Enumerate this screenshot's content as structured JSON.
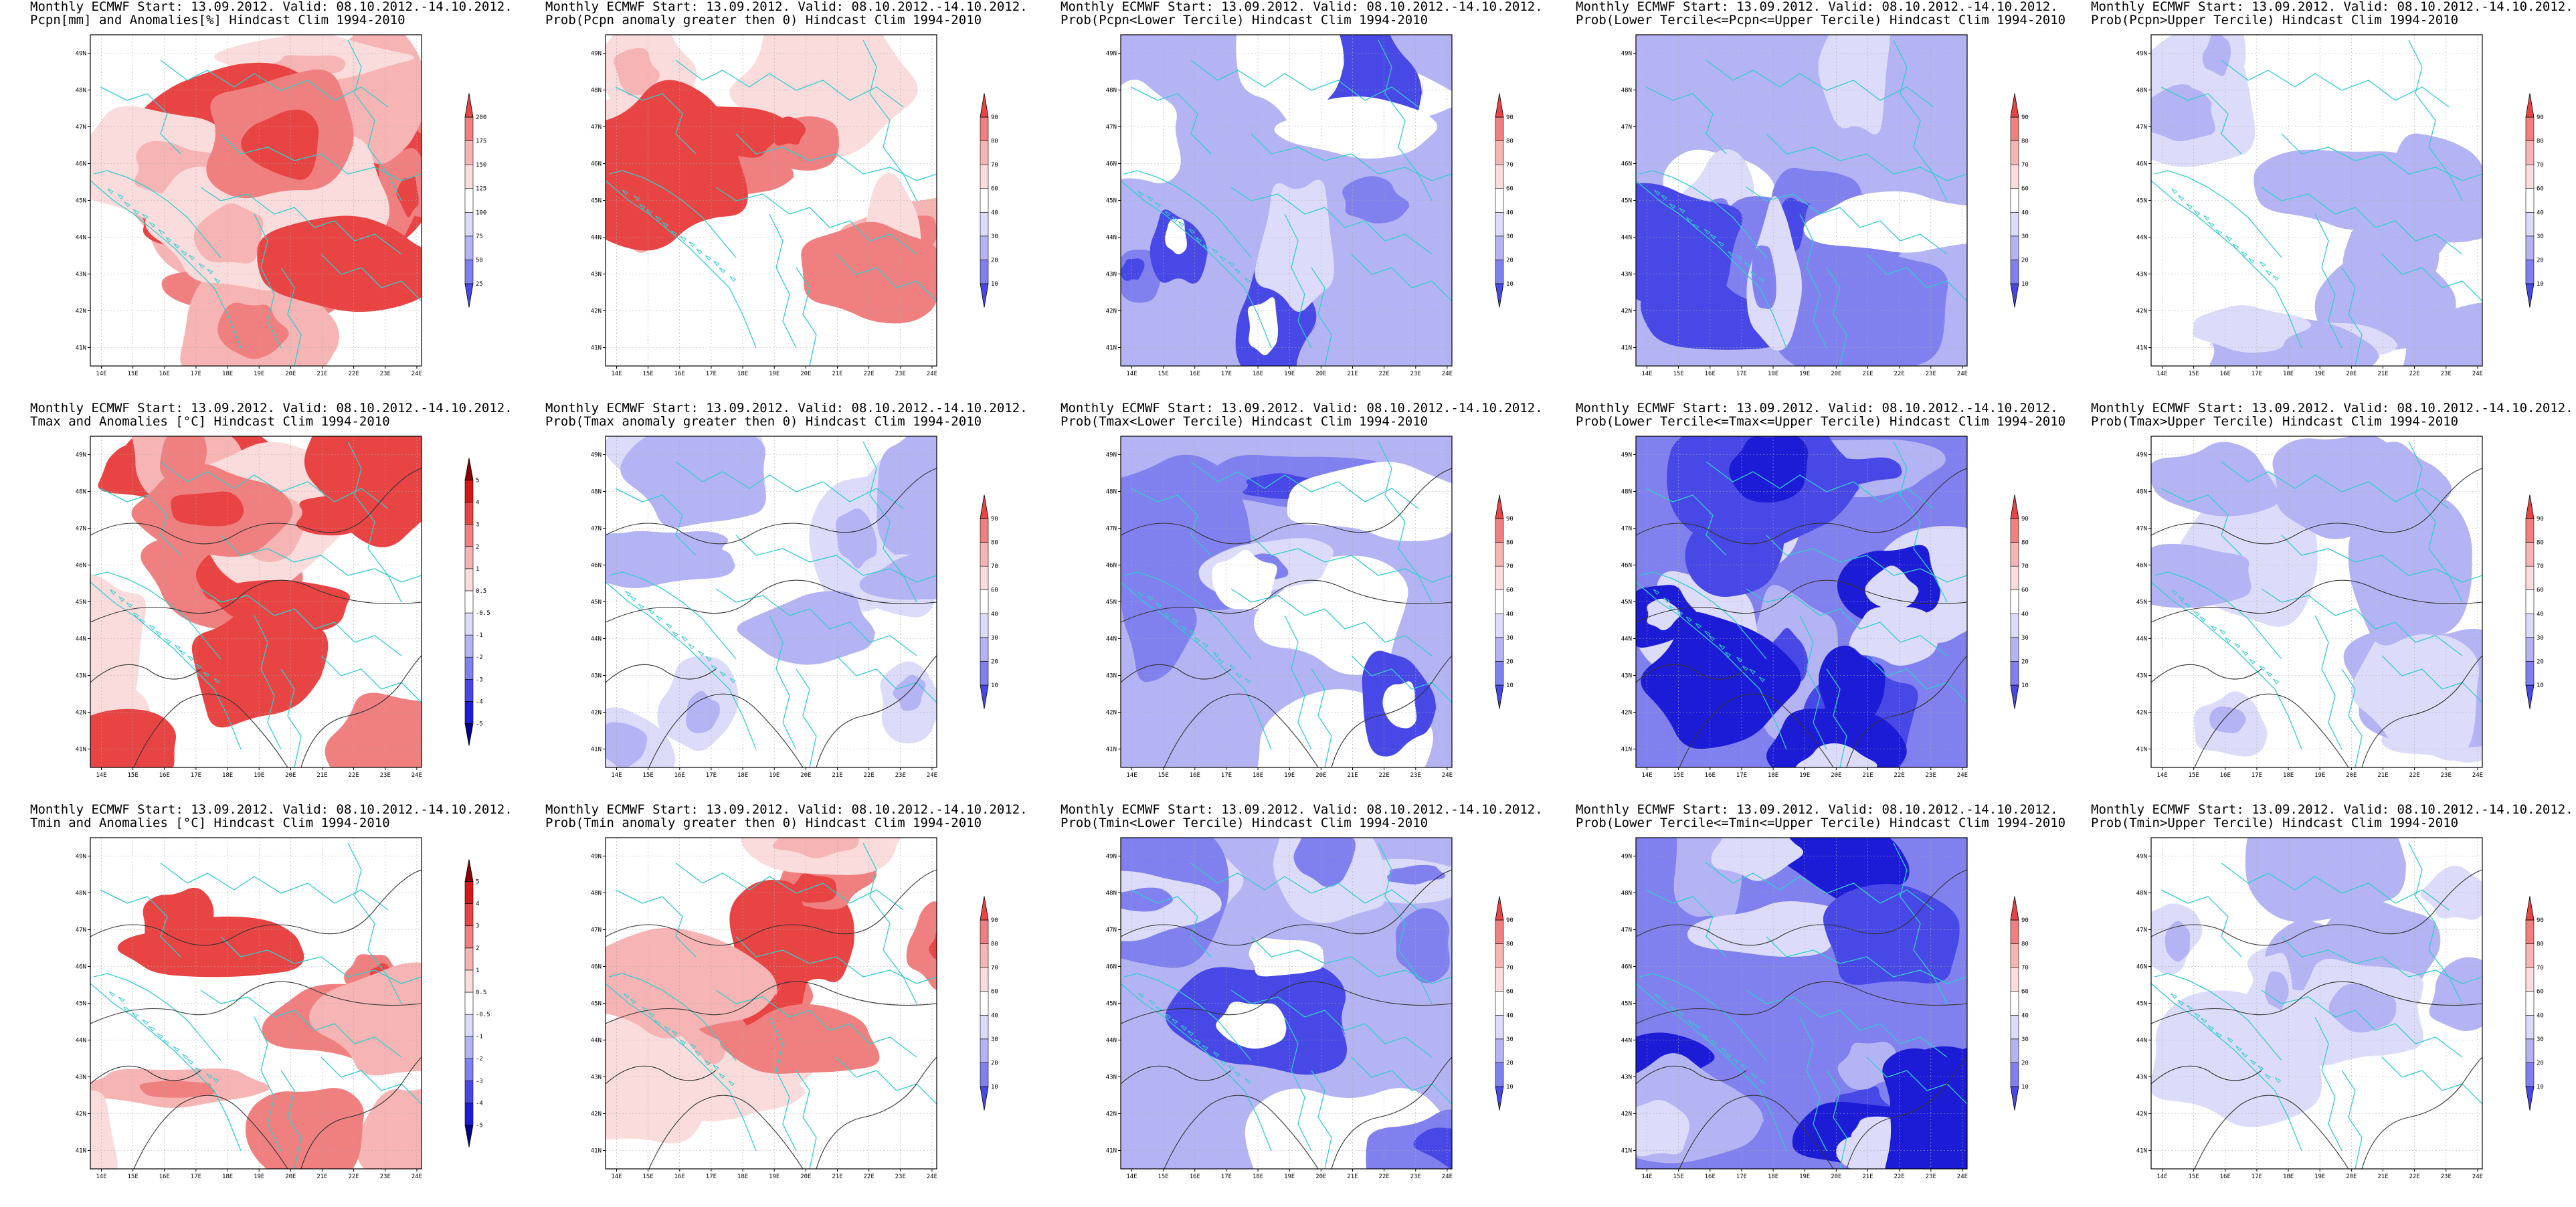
{
  "header_prefix": "Monthly ECMWF Start: 13.09.2012. Valid: 08.10.2012.-14.10.2012.",
  "rows": [
    [
      {
        "id": "pcpn-anom",
        "title": "Pcpn[mm] and Anomalies[%] Hindcast Clim 1994-2010",
        "palette": "anom",
        "scale": [
          "25",
          "50",
          "75",
          "100",
          "125",
          "150",
          "175",
          "200"
        ]
      },
      {
        "id": "pcpn-prob-pos",
        "title": "Prob(Pcpn anomaly greater then 0) Hindcast Clim 1994-2010",
        "palette": "anom",
        "scale": [
          "10",
          "20",
          "30",
          "40",
          "60",
          "70",
          "80",
          "90"
        ]
      },
      {
        "id": "pcpn-lower",
        "title": "Prob(Pcpn<Lower Tercile) Hindcast Clim 1994-2010",
        "palette": "blue",
        "scale": [
          "10",
          "20",
          "30",
          "40",
          "60",
          "70",
          "80",
          "90"
        ]
      },
      {
        "id": "pcpn-middle",
        "title": "Prob(Lower Tercile<=Pcpn<=Upper Tercile) Hindcast Clim 1994-2010",
        "palette": "blue",
        "scale": [
          "10",
          "20",
          "30",
          "40",
          "60",
          "70",
          "80",
          "90"
        ]
      },
      {
        "id": "pcpn-upper",
        "title": "Prob(Pcpn>Upper Tercile) Hindcast Clim 1994-2010",
        "palette": "light",
        "scale": [
          "10",
          "20",
          "30",
          "40",
          "60",
          "70",
          "80",
          "90"
        ]
      }
    ],
    [
      {
        "id": "tmax-anom",
        "title": "Tmax and Anomalies [°C] Hindcast Clim 1994-2010",
        "palette": "anom",
        "scale": [
          "-5",
          "-4",
          "-3",
          "-2",
          "-1",
          "-0.5",
          "0.5",
          "1",
          "2",
          "3",
          "4",
          "5"
        ]
      },
      {
        "id": "tmax-prob-pos",
        "title": "Prob(Tmax anomaly greater then 0) Hindcast Clim 1994-2010",
        "palette": "light",
        "scale": [
          "10",
          "20",
          "30",
          "40",
          "60",
          "70",
          "80",
          "90"
        ]
      },
      {
        "id": "tmax-lower",
        "title": "Prob(Tmax<Lower Tercile) Hindcast Clim 1994-2010",
        "palette": "blue",
        "scale": [
          "10",
          "20",
          "30",
          "40",
          "60",
          "70",
          "80",
          "90"
        ]
      },
      {
        "id": "tmax-middle",
        "title": "Prob(Lower Tercile<=Tmax<=Upper Tercile) Hindcast Clim 1994-2010",
        "palette": "deep",
        "scale": [
          "10",
          "20",
          "30",
          "40",
          "60",
          "70",
          "80",
          "90"
        ]
      },
      {
        "id": "tmax-upper",
        "title": "Prob(Tmax>Upper Tercile) Hindcast Clim 1994-2010",
        "palette": "light",
        "scale": [
          "10",
          "20",
          "30",
          "40",
          "60",
          "70",
          "80",
          "90"
        ]
      }
    ],
    [
      {
        "id": "tmin-anom",
        "title": "Tmin and Anomalies [°C] Hindcast Clim 1994-2010",
        "palette": "anom",
        "scale": [
          "-5",
          "-4",
          "-3",
          "-2",
          "-1",
          "-0.5",
          "0.5",
          "1",
          "2",
          "3",
          "4",
          "5"
        ]
      },
      {
        "id": "tmin-prob-pos",
        "title": "Prob(Tmin anomaly greater then 0) Hindcast Clim 1994-2010",
        "palette": "anom",
        "scale": [
          "10",
          "20",
          "30",
          "40",
          "60",
          "70",
          "80",
          "90"
        ]
      },
      {
        "id": "tmin-lower",
        "title": "Prob(Tmin<Lower Tercile) Hindcast Clim 1994-2010",
        "palette": "blue",
        "scale": [
          "10",
          "20",
          "30",
          "40",
          "60",
          "70",
          "80",
          "90"
        ]
      },
      {
        "id": "tmin-middle",
        "title": "Prob(Lower Tercile<=Tmin<=Upper Tercile) Hindcast Clim 1994-2010",
        "palette": "deep",
        "scale": [
          "10",
          "20",
          "30",
          "40",
          "60",
          "70",
          "80",
          "90"
        ]
      },
      {
        "id": "tmin-upper",
        "title": "Prob(Tmin>Upper Tercile) Hindcast Clim 1994-2010",
        "palette": "light",
        "scale": [
          "10",
          "20",
          "30",
          "40",
          "60",
          "70",
          "80",
          "90"
        ]
      }
    ]
  ],
  "lat_labels": [
    "41N",
    "42N",
    "43N",
    "44N",
    "45N",
    "46N",
    "47N",
    "48N",
    "49N"
  ],
  "lon_labels": [
    "14E",
    "15E",
    "16E",
    "17E",
    "18E",
    "19E",
    "20E",
    "21E",
    "22E",
    "23E",
    "24E"
  ],
  "colors": {
    "red_scale": [
      "#ffffff",
      "#fbdcdc",
      "#f7b4b4",
      "#f08080",
      "#e94444",
      "#d41818",
      "#8b0000"
    ],
    "blue_scale": [
      "#ffffff",
      "#dcdcfa",
      "#b4b4f4",
      "#8080ee",
      "#4848e6",
      "#1c1cd6",
      "#00008b"
    ],
    "coast": "#33cccc",
    "contour": "#333333",
    "frame": "#000000"
  }
}
